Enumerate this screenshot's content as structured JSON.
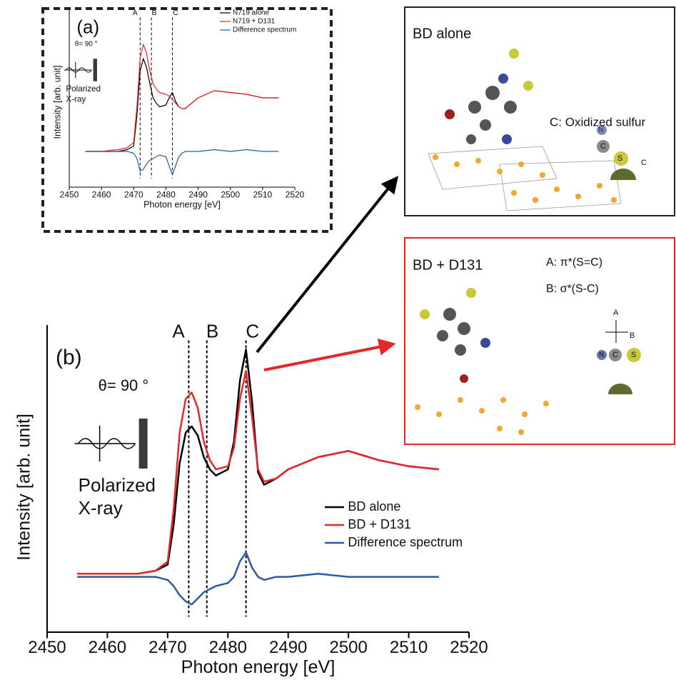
{
  "chart_data": [
    {
      "type": "line",
      "title": "(a)",
      "x_label": "Photon energy [eV]",
      "y_label": "Intensity [arb. unit]",
      "x": [
        2455,
        2460,
        2465,
        2468,
        2470,
        2471,
        2472,
        2473,
        2474,
        2475,
        2476,
        2477,
        2478,
        2480,
        2481,
        2482,
        2483,
        2484,
        2485,
        2486,
        2488,
        2490,
        2495,
        2500,
        2505,
        2510,
        2515
      ],
      "series": [
        {
          "name": "N719 alone",
          "color": "#000000",
          "values": [
            0.2,
            0.2,
            0.2,
            0.21,
            0.23,
            0.4,
            0.65,
            0.72,
            0.67,
            0.58,
            0.5,
            0.47,
            0.45,
            0.46,
            0.5,
            0.53,
            0.48,
            0.45,
            0.44,
            0.44,
            0.47,
            0.5,
            0.54,
            0.53,
            0.52,
            0.5,
            0.5
          ]
        },
        {
          "name": "N719 + D131",
          "color": "#e8262a",
          "values": [
            0.2,
            0.2,
            0.21,
            0.22,
            0.25,
            0.45,
            0.72,
            0.8,
            0.75,
            0.65,
            0.58,
            0.55,
            0.53,
            0.52,
            0.51,
            0.49,
            0.47,
            0.45,
            0.44,
            0.44,
            0.47,
            0.5,
            0.54,
            0.53,
            0.52,
            0.5,
            0.5
          ]
        },
        {
          "name": "Difference spectrum",
          "color": "#2a5ba8",
          "values": [
            0.2,
            0.2,
            0.2,
            0.2,
            0.19,
            0.16,
            0.09,
            0.1,
            0.13,
            0.15,
            0.16,
            0.17,
            0.18,
            0.17,
            0.12,
            0.07,
            0.12,
            0.17,
            0.19,
            0.2,
            0.2,
            0.2,
            0.21,
            0.2,
            0.21,
            0.2,
            0.2
          ]
        }
      ],
      "xlim": [
        2450,
        2520
      ],
      "xticks": [
        2450,
        2460,
        2470,
        2480,
        2490,
        2500,
        2510,
        2520
      ],
      "ylim": [
        0,
        1
      ],
      "markers": [
        {
          "label": "A",
          "x": 2472
        },
        {
          "label": "B",
          "x": 2475.5
        },
        {
          "label": "C",
          "x": 2482
        }
      ],
      "inset_labels": [
        "θ= 90 °",
        "Polarized",
        "X-ray"
      ]
    },
    {
      "type": "line",
      "title": "(b)",
      "x_label": "Photon energy [eV]",
      "y_label": "Intensity [arb. unit]",
      "x": [
        2455,
        2460,
        2465,
        2468,
        2470,
        2471,
        2472,
        2473,
        2474,
        2475,
        2476,
        2477,
        2478,
        2480,
        2481,
        2482,
        2483,
        2484,
        2485,
        2486,
        2488,
        2490,
        2495,
        2500,
        2505,
        2510,
        2515
      ],
      "series": [
        {
          "name": "BD alone",
          "color": "#000000",
          "values": [
            0.19,
            0.19,
            0.19,
            0.2,
            0.22,
            0.35,
            0.55,
            0.65,
            0.67,
            0.64,
            0.57,
            0.53,
            0.51,
            0.53,
            0.62,
            0.82,
            0.92,
            0.75,
            0.52,
            0.48,
            0.5,
            0.53,
            0.57,
            0.59,
            0.56,
            0.54,
            0.53
          ]
        },
        {
          "name": "BD + D131",
          "color": "#e8262a",
          "values": [
            0.19,
            0.19,
            0.19,
            0.2,
            0.23,
            0.4,
            0.65,
            0.76,
            0.78,
            0.73,
            0.62,
            0.56,
            0.53,
            0.54,
            0.6,
            0.76,
            0.85,
            0.7,
            0.53,
            0.49,
            0.5,
            0.53,
            0.57,
            0.59,
            0.56,
            0.54,
            0.53
          ]
        },
        {
          "name": "Difference spectrum",
          "color": "#2a5ba8",
          "values": [
            0.18,
            0.18,
            0.18,
            0.18,
            0.17,
            0.15,
            0.12,
            0.1,
            0.09,
            0.11,
            0.13,
            0.14,
            0.15,
            0.16,
            0.18,
            0.23,
            0.26,
            0.21,
            0.18,
            0.17,
            0.18,
            0.18,
            0.19,
            0.18,
            0.18,
            0.18,
            0.18
          ]
        }
      ],
      "xlim": [
        2450,
        2520
      ],
      "xticks": [
        2450,
        2460,
        2470,
        2480,
        2490,
        2500,
        2510,
        2520
      ],
      "ylim": [
        0,
        1
      ],
      "markers": [
        {
          "label": "A",
          "x": 2473.5
        },
        {
          "label": "B",
          "x": 2476.5
        },
        {
          "label": "C",
          "x": 2483
        }
      ],
      "inset_labels": [
        "θ= 90 °",
        "Polarized",
        "X-ray"
      ]
    }
  ],
  "panels": [
    {
      "title": "BD alone",
      "labels": [
        "C: Oxidized sulfur"
      ],
      "atoms": [
        "N",
        "C",
        "S",
        "C"
      ]
    },
    {
      "title": "BD + D131",
      "labels": [
        "A: π*(S=C)",
        "B: σ*(S-C)"
      ],
      "atoms": [
        "N",
        "C",
        "S",
        "A",
        "B"
      ]
    }
  ]
}
